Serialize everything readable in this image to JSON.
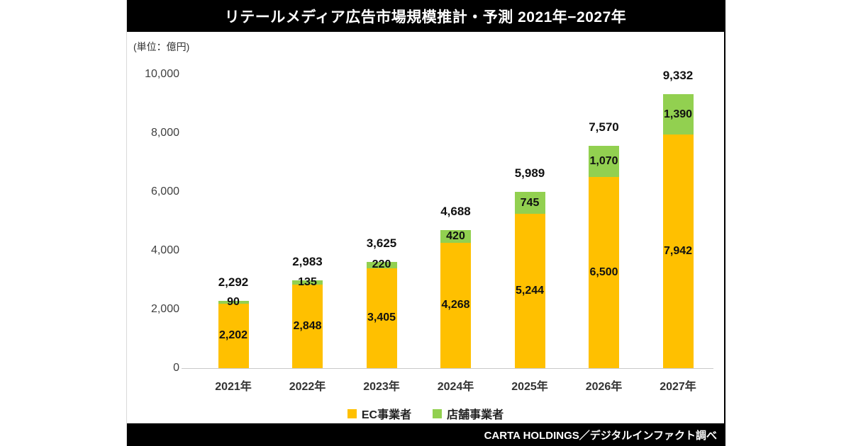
{
  "title": "リテールメディア広告市場規模推計・予測 2021年−2027年",
  "unit_label": "(単位：億円)",
  "footer": "CARTA HOLDINGS／デジタルインファクト調べ",
  "chart_data": {
    "type": "bar",
    "stacked": true,
    "title": "リテールメディア広告市場規模推計・予測 2021年−2027年",
    "unit": "億円",
    "categories": [
      "2021年",
      "2022年",
      "2023年",
      "2024年",
      "2025年",
      "2026年",
      "2027年"
    ],
    "series": [
      {
        "name": "EC事業者",
        "color": "#FFC000",
        "values": [
          2202,
          2848,
          3405,
          4268,
          5244,
          6500,
          7942
        ]
      },
      {
        "name": "店舗事業者",
        "color": "#92D050",
        "values": [
          90,
          135,
          220,
          420,
          745,
          1070,
          1390
        ]
      }
    ],
    "totals": [
      2292,
      2983,
      3625,
      4688,
      5989,
      7570,
      9332
    ],
    "xlabel": "",
    "ylabel": "",
    "ylim": [
      0,
      10000
    ],
    "yticks": [
      0,
      2000,
      4000,
      6000,
      8000,
      10000
    ],
    "grid": false,
    "legend_position": "bottom"
  }
}
